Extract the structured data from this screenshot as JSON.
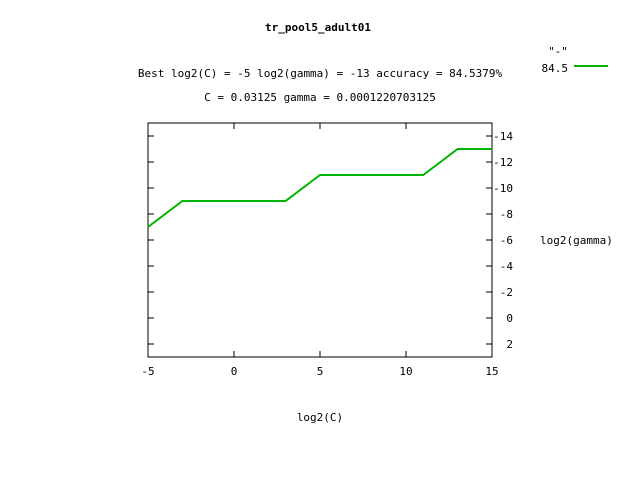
{
  "chart_data": {
    "type": "line",
    "title": "tr_pool5_adult01",
    "subtitle_lines": [
      "Best log2(C) = -5  log2(gamma) = -13  accuracy = 84.5379%",
      "C = 0.03125  gamma = 0.0001220703125"
    ],
    "xlabel": "log2(C)",
    "ylabel": "log2(gamma)",
    "xlim": [
      -5,
      15
    ],
    "ylim": [
      3,
      -15
    ],
    "y_axis_position": "right",
    "y_reversed": true,
    "grid": false,
    "x_ticks": [
      -5,
      0,
      5,
      10,
      15
    ],
    "y_ticks": [
      -14,
      -12,
      -10,
      -8,
      -6,
      -4,
      -2,
      0,
      2
    ],
    "legend": {
      "placement": "top-right",
      "header": "\"-\"",
      "entry": "84.5"
    },
    "series": [
      {
        "name": "84.5",
        "color": "#00b400",
        "x": [
          -5,
          -3,
          3,
          5,
          11,
          13,
          15
        ],
        "y": [
          -7,
          -9,
          -9,
          -11,
          -11,
          -13,
          -13
        ]
      }
    ]
  }
}
